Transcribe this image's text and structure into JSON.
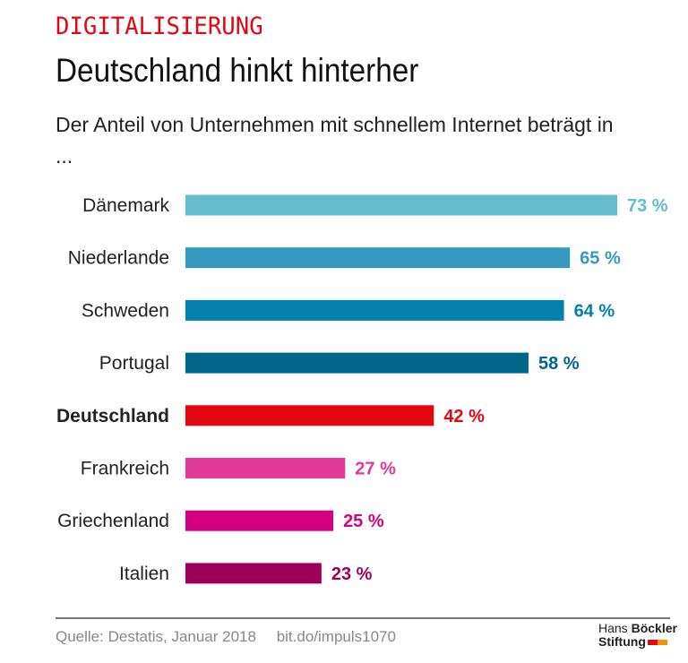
{
  "header": {
    "kicker": "DIGITALISIERUNG",
    "title": "Deutschland hinkt hinterher",
    "subtitle": "Der Anteil von Unternehmen mit schnellem Internet beträgt in ..."
  },
  "chart_data": {
    "type": "bar",
    "orientation": "horizontal",
    "categories": [
      "Dänemark",
      "Niederlande",
      "Schweden",
      "Portugal",
      "Deutschland",
      "Frankreich",
      "Griechenland",
      "Italien"
    ],
    "values": [
      73,
      65,
      64,
      58,
      42,
      27,
      25,
      23
    ],
    "value_labels": [
      "73 %",
      "65 %",
      "64 %",
      "58 %",
      "42 %",
      "27 %",
      "25 %",
      "23 %"
    ],
    "colors": [
      "#62bccb",
      "#349bbf",
      "#0480ae",
      "#00668a",
      "#e30613",
      "#e2399a",
      "#d4007f",
      "#9c0058"
    ],
    "highlight": "Deutschland",
    "xlim": [
      0,
      73
    ],
    "grid": false
  },
  "footer": {
    "source": "Quelle: Destatis, Januar 2018",
    "link": "bit.do/impuls1070",
    "logo_line1_a": "Hans",
    "logo_line1_b": "Böckler",
    "logo_line2": "Stiftung",
    "logo_colors": [
      "#e30613",
      "#f39200"
    ]
  }
}
